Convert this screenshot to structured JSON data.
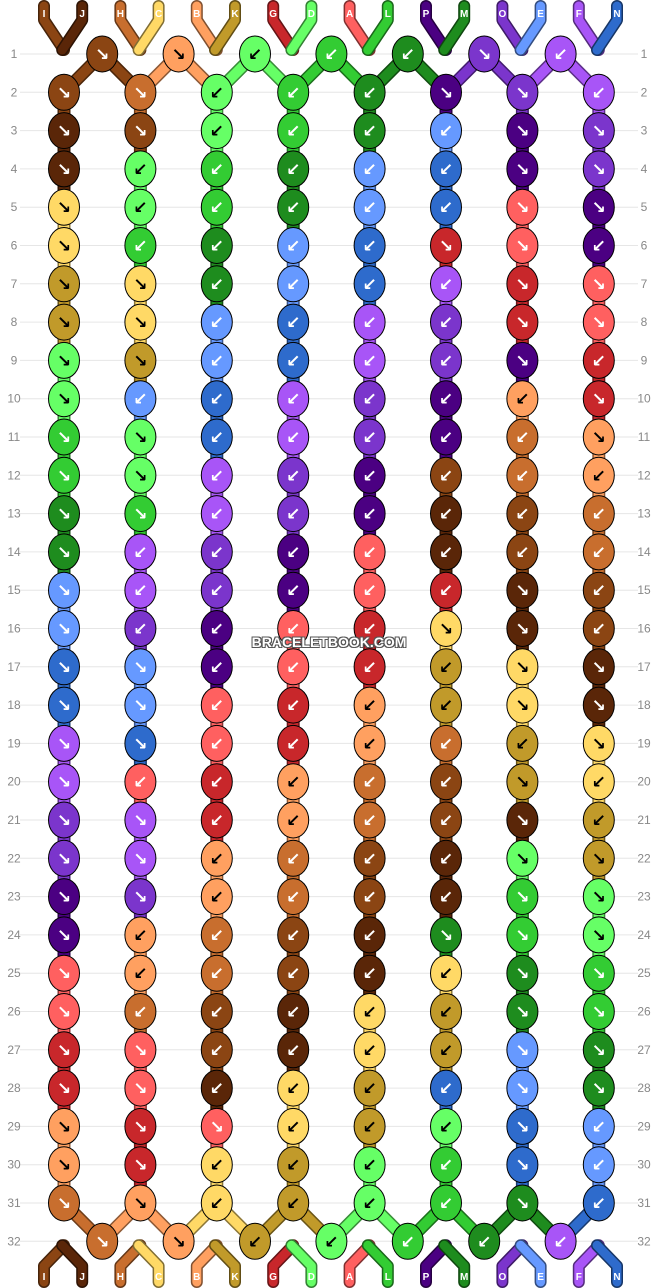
{
  "pattern": {
    "strings": [
      {
        "label": "I",
        "color": "#8B4513"
      },
      {
        "label": "J",
        "color": "#5A2608"
      },
      {
        "label": "H",
        "color": "#C86E2E"
      },
      {
        "label": "C",
        "color": "#FFD966"
      },
      {
        "label": "B",
        "color": "#FFA060"
      },
      {
        "label": "K",
        "color": "#C19A2A"
      },
      {
        "label": "G",
        "color": "#C8272B"
      },
      {
        "label": "D",
        "color": "#66FF66"
      },
      {
        "label": "A",
        "color": "#FF6060"
      },
      {
        "label": "L",
        "color": "#33CC33"
      },
      {
        "label": "P",
        "color": "#4B0082"
      },
      {
        "label": "M",
        "color": "#1E8C1E"
      },
      {
        "label": "O",
        "color": "#7B35CC"
      },
      {
        "label": "E",
        "color": "#6699FF"
      },
      {
        "label": "F",
        "color": "#A855F7"
      },
      {
        "label": "N",
        "color": "#2E6BCC"
      }
    ],
    "rows": [
      "1",
      "2",
      "3",
      "4",
      "5",
      "6",
      "7",
      "8",
      "9",
      "10",
      "11",
      "12",
      "13",
      "14",
      "15",
      "16",
      "17",
      "18",
      "19",
      "20",
      "21",
      "22",
      "23",
      "24",
      "25",
      "26",
      "27",
      "28",
      "29",
      "30",
      "31",
      "32"
    ],
    "knot_colors": [
      [
        "#8B4513",
        "#FFA060",
        "#66FF66",
        "#33CC33",
        "#1E8C1E",
        "#7B35CC",
        "#A855F7"
      ],
      [
        "#8B4513",
        "#C86E2E",
        "#66FF66",
        "#33CC33",
        "#1E8C1E",
        "#4B0082",
        "#7B35CC",
        "#A855F7"
      ],
      [
        "#5A2608",
        "#8B4513",
        "#66FF66",
        "#33CC33",
        "#1E8C1E",
        "#6699FF",
        "#4B0082",
        "#7B35CC"
      ],
      [
        "#5A2608",
        "#66FF66",
        "#33CC33",
        "#1E8C1E",
        "#6699FF",
        "#2E6BCC",
        "#4B0082",
        "#7B35CC"
      ],
      [
        "#FFD966",
        "#66FF66",
        "#33CC33",
        "#1E8C1E",
        "#6699FF",
        "#2E6BCC",
        "#FF6060",
        "#4B0082"
      ],
      [
        "#FFD966",
        "#33CC33",
        "#1E8C1E",
        "#6699FF",
        "#2E6BCC",
        "#C8272B",
        "#FF6060",
        "#4B0082"
      ],
      [
        "#C19A2A",
        "#FFD966",
        "#1E8C1E",
        "#6699FF",
        "#2E6BCC",
        "#A855F7",
        "#C8272B",
        "#FF6060"
      ],
      [
        "#C19A2A",
        "#FFD966",
        "#6699FF",
        "#2E6BCC",
        "#A855F7",
        "#7B35CC",
        "#C8272B",
        "#FF6060"
      ],
      [
        "#66FF66",
        "#C19A2A",
        "#6699FF",
        "#2E6BCC",
        "#A855F7",
        "#7B35CC",
        "#4B0082",
        "#C8272B"
      ],
      [
        "#66FF66",
        "#6699FF",
        "#2E6BCC",
        "#A855F7",
        "#7B35CC",
        "#4B0082",
        "#FFA060",
        "#C8272B"
      ],
      [
        "#33CC33",
        "#66FF66",
        "#2E6BCC",
        "#A855F7",
        "#7B35CC",
        "#4B0082",
        "#C86E2E",
        "#FFA060"
      ],
      [
        "#33CC33",
        "#66FF66",
        "#A855F7",
        "#7B35CC",
        "#4B0082",
        "#8B4513",
        "#C86E2E",
        "#FFA060"
      ],
      [
        "#1E8C1E",
        "#33CC33",
        "#A855F7",
        "#7B35CC",
        "#4B0082",
        "#5A2608",
        "#8B4513",
        "#C86E2E"
      ],
      [
        "#1E8C1E",
        "#A855F7",
        "#7B35CC",
        "#4B0082",
        "#FF6060",
        "#5A2608",
        "#8B4513",
        "#C86E2E"
      ],
      [
        "#6699FF",
        "#A855F7",
        "#7B35CC",
        "#4B0082",
        "#FF6060",
        "#C8272B",
        "#5A2608",
        "#8B4513"
      ],
      [
        "#6699FF",
        "#7B35CC",
        "#4B0082",
        "#FF6060",
        "#C8272B",
        "#FFD966",
        "#5A2608",
        "#8B4513"
      ],
      [
        "#2E6BCC",
        "#6699FF",
        "#4B0082",
        "#FF6060",
        "#C8272B",
        "#C19A2A",
        "#FFD966",
        "#5A2608"
      ],
      [
        "#2E6BCC",
        "#6699FF",
        "#FF6060",
        "#C8272B",
        "#FFA060",
        "#C19A2A",
        "#FFD966",
        "#5A2608"
      ],
      [
        "#A855F7",
        "#2E6BCC",
        "#FF6060",
        "#C8272B",
        "#FFA060",
        "#C86E2E",
        "#C19A2A",
        "#FFD966"
      ],
      [
        "#A855F7",
        "#FF6060",
        "#C8272B",
        "#FFA060",
        "#C86E2E",
        "#8B4513",
        "#C19A2A",
        "#FFD966"
      ],
      [
        "#7B35CC",
        "#A855F7",
        "#C8272B",
        "#FFA060",
        "#C86E2E",
        "#8B4513",
        "#5A2608",
        "#C19A2A"
      ],
      [
        "#7B35CC",
        "#A855F7",
        "#FFA060",
        "#C86E2E",
        "#8B4513",
        "#5A2608",
        "#66FF66",
        "#C19A2A"
      ],
      [
        "#4B0082",
        "#7B35CC",
        "#FFA060",
        "#C86E2E",
        "#8B4513",
        "#5A2608",
        "#33CC33",
        "#66FF66"
      ],
      [
        "#4B0082",
        "#FFA060",
        "#C86E2E",
        "#8B4513",
        "#5A2608",
        "#1E8C1E",
        "#33CC33",
        "#66FF66"
      ],
      [
        "#FF6060",
        "#FFA060",
        "#C86E2E",
        "#8B4513",
        "#5A2608",
        "#FFD966",
        "#1E8C1E",
        "#33CC33"
      ],
      [
        "#FF6060",
        "#C86E2E",
        "#8B4513",
        "#5A2608",
        "#FFD966",
        "#C19A2A",
        "#1E8C1E",
        "#33CC33"
      ],
      [
        "#C8272B",
        "#FF6060",
        "#8B4513",
        "#5A2608",
        "#FFD966",
        "#C19A2A",
        "#6699FF",
        "#1E8C1E"
      ],
      [
        "#C8272B",
        "#FF6060",
        "#5A2608",
        "#FFD966",
        "#C19A2A",
        "#2E6BCC",
        "#6699FF",
        "#1E8C1E"
      ],
      [
        "#FFA060",
        "#C8272B",
        "#FF6060",
        "#FFD966",
        "#C19A2A",
        "#66FF66",
        "#2E6BCC",
        "#6699FF"
      ],
      [
        "#FFA060",
        "#C8272B",
        "#FFD966",
        "#C19A2A",
        "#66FF66",
        "#33CC33",
        "#2E6BCC",
        "#6699FF"
      ],
      [
        "#C86E2E",
        "#FFA060",
        "#FFD966",
        "#C19A2A",
        "#66FF66",
        "#33CC33",
        "#1E8C1E",
        "#2E6BCC"
      ],
      [
        "#C86E2E",
        "#FFA060",
        "#C19A2A",
        "#66FF66",
        "#33CC33",
        "#1E8C1E",
        "#A855F7"
      ]
    ],
    "knot_arrows": [
      [
        "↘",
        "↘",
        "↙",
        "↙",
        "↙",
        "↘",
        "↙"
      ],
      [
        "↘",
        "↘",
        "↙",
        "↙",
        "↙",
        "↘",
        "↘",
        "↙"
      ],
      [
        "↘",
        "↘",
        "↙",
        "↙",
        "↙",
        "↙",
        "↘",
        "↘"
      ],
      [
        "↘",
        "↙",
        "↙",
        "↙",
        "↙",
        "↙",
        "↘",
        "↘"
      ],
      [
        "↘",
        "↙",
        "↙",
        "↙",
        "↙",
        "↙",
        "↘",
        "↘"
      ],
      [
        "↘",
        "↙",
        "↙",
        "↙",
        "↙",
        "↘",
        "↘",
        "↙"
      ],
      [
        "↘",
        "↘",
        "↙",
        "↙",
        "↙",
        "↙",
        "↘",
        "↘"
      ],
      [
        "↘",
        "↘",
        "↙",
        "↙",
        "↙",
        "↙",
        "↘",
        "↘"
      ],
      [
        "↘",
        "↘",
        "↙",
        "↙",
        "↙",
        "↙",
        "↘",
        "↙"
      ],
      [
        "↘",
        "↙",
        "↙",
        "↙",
        "↙",
        "↙",
        "↙",
        "↘"
      ],
      [
        "↘",
        "↘",
        "↙",
        "↙",
        "↙",
        "↙",
        "↙",
        "↘"
      ],
      [
        "↘",
        "↘",
        "↙",
        "↙",
        "↙",
        "↙",
        "↙",
        "↙"
      ],
      [
        "↘",
        "↘",
        "↙",
        "↙",
        "↙",
        "↙",
        "↙",
        "↙"
      ],
      [
        "↘",
        "↙",
        "↙",
        "↙",
        "↙",
        "↙",
        "↙",
        "↙"
      ],
      [
        "↘",
        "↙",
        "↙",
        "↙",
        "↙",
        "↙",
        "↘",
        "↙"
      ],
      [
        "↘",
        "↙",
        "↙",
        "↙",
        "↙",
        "↘",
        "↘",
        "↙"
      ],
      [
        "↘",
        "↘",
        "↙",
        "↙",
        "↙",
        "↙",
        "↘",
        "↘"
      ],
      [
        "↘",
        "↘",
        "↙",
        "↙",
        "↙",
        "↙",
        "↘",
        "↘"
      ],
      [
        "↘",
        "↘",
        "↙",
        "↙",
        "↙",
        "↙",
        "↙",
        "↘"
      ],
      [
        "↘",
        "↙",
        "↙",
        "↙",
        "↙",
        "↙",
        "↘",
        "↙"
      ],
      [
        "↘",
        "↘",
        "↙",
        "↙",
        "↙",
        "↙",
        "↘",
        "↙"
      ],
      [
        "↘",
        "↘",
        "↙",
        "↙",
        "↙",
        "↙",
        "↘",
        "↘"
      ],
      [
        "↘",
        "↘",
        "↙",
        "↙",
        "↙",
        "↙",
        "↘",
        "↘"
      ],
      [
        "↘",
        "↙",
        "↙",
        "↙",
        "↙",
        "↘",
        "↘",
        "↘"
      ],
      [
        "↘",
        "↙",
        "↙",
        "↙",
        "↙",
        "↙",
        "↘",
        "↘"
      ],
      [
        "↘",
        "↙",
        "↙",
        "↙",
        "↙",
        "↙",
        "↘",
        "↘"
      ],
      [
        "↘",
        "↘",
        "↙",
        "↙",
        "↙",
        "↙",
        "↘",
        "↘"
      ],
      [
        "↘",
        "↘",
        "↙",
        "↙",
        "↙",
        "↙",
        "↘",
        "↘"
      ],
      [
        "↘",
        "↘",
        "↘",
        "↙",
        "↙",
        "↙",
        "↘",
        "↙"
      ],
      [
        "↘",
        "↘",
        "↙",
        "↙",
        "↙",
        "↙",
        "↘",
        "↙"
      ],
      [
        "↘",
        "↘",
        "↙",
        "↙",
        "↙",
        "↙",
        "↘",
        "↙"
      ],
      [
        "↘",
        "↘",
        "↙",
        "↙",
        "↙",
        "↙",
        "↙"
      ]
    ],
    "watermark": "BRACELETBOOK.COM"
  }
}
